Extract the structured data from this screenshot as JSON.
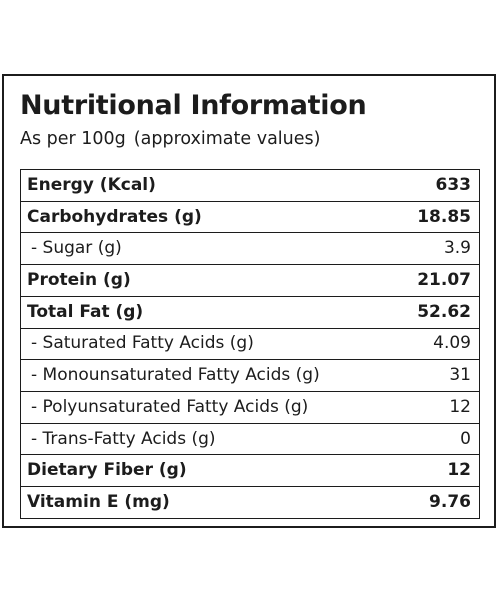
{
  "header": {
    "title": "Nutritional Information",
    "basis": "As per 100g",
    "note": "(approximate values)"
  },
  "rows": [
    {
      "label": "Energy (Kcal)",
      "value": "633",
      "bold": true
    },
    {
      "label": "Carbohydrates (g)",
      "value": "18.85",
      "bold": true
    },
    {
      "label": "- Sugar (g)",
      "value": "3.9",
      "bold": false
    },
    {
      "label": "Protein (g)",
      "value": "21.07",
      "bold": true
    },
    {
      "label": "Total Fat (g)",
      "value": "52.62",
      "bold": true
    },
    {
      "label": "- Saturated Fatty Acids (g)",
      "value": "4.09",
      "bold": false
    },
    {
      "label": "- Monounsaturated Fatty Acids (g)",
      "value": "31",
      "bold": false
    },
    {
      "label": "- Polyunsaturated  Fatty Acids (g)",
      "value": "12",
      "bold": false
    },
    {
      "label": "- Trans-Fatty Acids (g)",
      "value": "0",
      "bold": false
    },
    {
      "label": "Dietary Fiber (g)",
      "value": "12",
      "bold": true
    },
    {
      "label": "Vitamin E (mg)",
      "value": "9.76",
      "bold": true
    }
  ]
}
